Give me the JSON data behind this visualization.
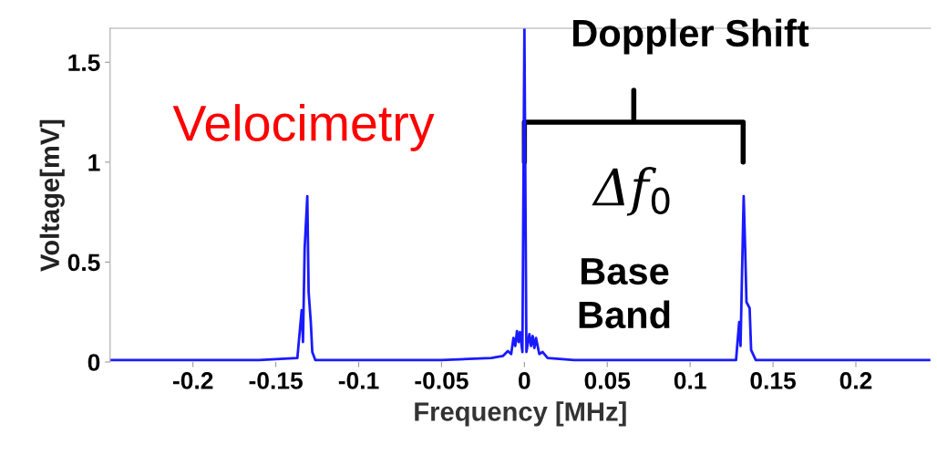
{
  "chart_data": {
    "type": "line",
    "xlabel": "Frequency [MHz]",
    "ylabel": "Voltage[mV]",
    "series": [
      {
        "color": "#1a1aff",
        "x": [
          -0.25,
          -0.2,
          -0.16,
          -0.137,
          -0.1344,
          -0.1336,
          -0.1326,
          -0.131,
          -0.1302,
          -0.1289,
          -0.128,
          -0.1262,
          -0.1,
          -0.05,
          -0.02,
          -0.013,
          -0.01,
          -0.008,
          -0.0066,
          -0.0055,
          -0.0045,
          -0.0035,
          -0.0027,
          -0.0012,
          0.0,
          0.0012,
          0.003,
          0.004,
          0.005,
          0.006,
          0.007,
          0.009,
          0.011,
          0.014,
          0.03,
          0.06,
          0.1,
          0.1277,
          0.1296,
          0.1304,
          0.1323,
          0.1332,
          0.134,
          0.1359,
          0.1368,
          0.1396,
          0.17,
          0.2,
          0.245
        ],
        "values": [
          0.01,
          0.01,
          0.01,
          0.02,
          0.26,
          0.1,
          0.57,
          0.83,
          0.35,
          0.2,
          0.05,
          0.01,
          0.01,
          0.01,
          0.02,
          0.03,
          0.055,
          0.04,
          0.12,
          0.08,
          0.155,
          0.1,
          0.15,
          0.05,
          1.67,
          0.05,
          0.14,
          0.08,
          0.13,
          0.07,
          0.12,
          0.04,
          0.05,
          0.02,
          0.01,
          0.01,
          0.01,
          0.01,
          0.2,
          0.08,
          0.83,
          0.57,
          0.3,
          0.27,
          0.06,
          0.01,
          0.01,
          0.01,
          0.01
        ]
      }
    ],
    "xlim": [
      -0.25,
      0.245
    ],
    "ylim": [
      0,
      1.67
    ],
    "xticks": [
      -0.2,
      -0.15,
      -0.1,
      -0.05,
      0,
      0.05,
      0.1,
      0.15,
      0.2
    ],
    "yticks": [
      0,
      0.5,
      1,
      1.5
    ],
    "grid": false,
    "legend": false,
    "annotations": [
      "Velocimetry",
      "Doppler Shift",
      "Δf$_{0}$",
      "Base\nBand"
    ]
  }
}
